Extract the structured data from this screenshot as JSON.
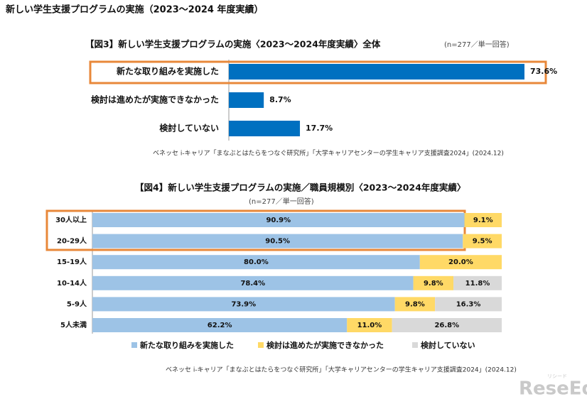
{
  "title": "新しい学生支援プログラムの実施（2023～2024 年度実績）",
  "logo": "ReseEd",
  "logo_sub": "リシード",
  "chart_data": [
    {
      "type": "bar",
      "title": "【図3】新しい学生支援プログラムの実施〈2023～2024年度実績〉全体",
      "subtitle": "(n=277／単一回答)",
      "categories": [
        "新たな取り組みを実施した",
        "検討は進めたが実施できなかった",
        "検討していない"
      ],
      "values": [
        73.6,
        8.7,
        17.7
      ],
      "value_labels": [
        "73.6%",
        "8.7%",
        "17.7%"
      ],
      "color": "#0070c0",
      "source": "ベネッセ i-キャリア「まなぶとはたらをつなぐ研究所」「大学キャリアセンターの学生キャリア支援調査2024」(2024.12)"
    },
    {
      "type": "stacked_bar",
      "title": "【図4】新しい学生支援プログラムの実施／職員規模別〈2023～2024年度実績〉",
      "subtitle": "(n=277／単一回答)",
      "categories": [
        "30人以上",
        "20-29人",
        "15-19人",
        "10-14人",
        "5-9人",
        "5人未満"
      ],
      "series": [
        {
          "name": "新たな取り組みを実施した",
          "color": "#9dc3e6",
          "values": [
            90.9,
            90.5,
            80.0,
            78.4,
            73.9,
            62.2
          ],
          "value_labels": [
            "90.9%",
            "90.5%",
            "80.0%",
            "78.4%",
            "73.9%",
            "62.2%"
          ]
        },
        {
          "name": "検討は進めたが実施できなかった",
          "color": "#ffd966",
          "values": [
            9.1,
            9.5,
            20.0,
            9.8,
            9.8,
            11.0
          ],
          "value_labels": [
            "9.1%",
            "9.5%",
            "20.0%",
            "9.8%",
            "9.8%",
            "11.0%"
          ]
        },
        {
          "name": "検討していない",
          "color": "#d9d9d9",
          "values": [
            null,
            null,
            null,
            11.8,
            16.3,
            26.8
          ],
          "value_labels": [
            null,
            null,
            null,
            "11.8%",
            "16.3%",
            "26.8%"
          ]
        }
      ],
      "legend": "bottom",
      "source": "ベネッセ i-キャリア「まなぶとはたらをつなぐ研究所」「大学キャリアセンターの学生キャリア支援調査2024」(2024.12)"
    }
  ]
}
